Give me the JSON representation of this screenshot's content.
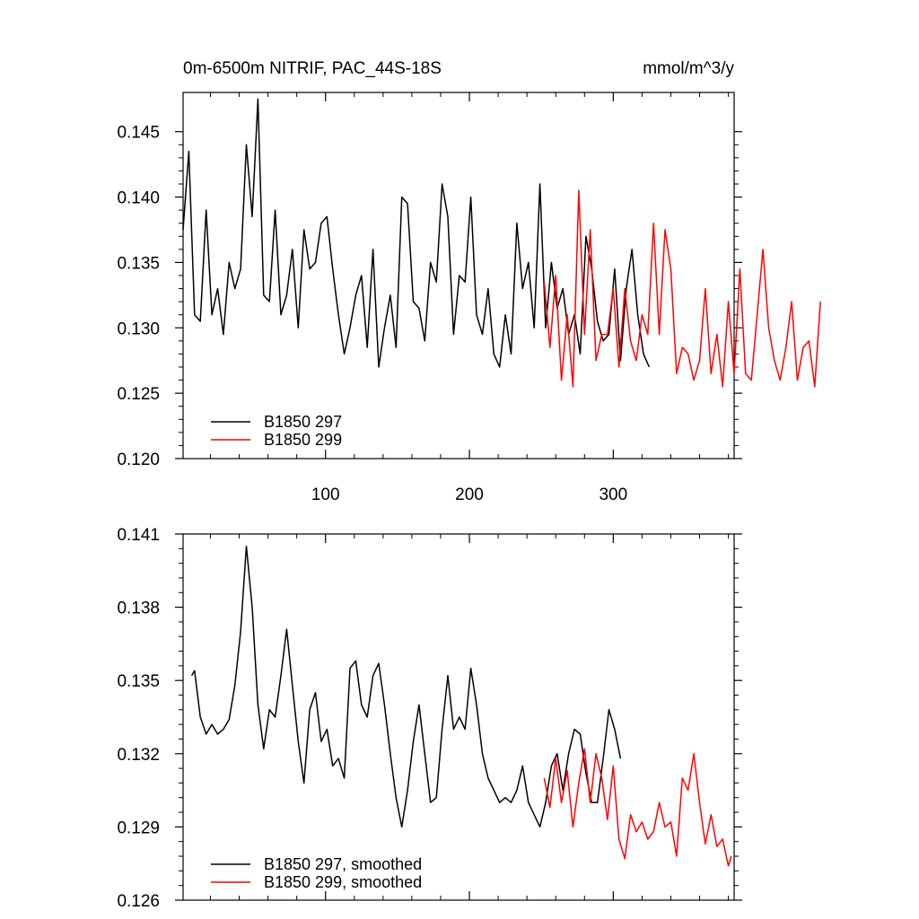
{
  "chart_data": [
    {
      "type": "line",
      "title": "0m-6500m NITRIF, PAC_44S-18S",
      "units": "mmol/m^3/y",
      "xlim": [
        1,
        384
      ],
      "ylim": [
        0.12,
        0.148
      ],
      "x_ticks": [
        100,
        200,
        300
      ],
      "x_tick_labels": [
        "100",
        "200",
        "300"
      ],
      "y_ticks": [
        0.12,
        0.125,
        0.13,
        0.135,
        0.14,
        0.145
      ],
      "y_tick_labels": [
        "0.120",
        "0.125",
        "0.130",
        "0.135",
        "0.140",
        "0.145"
      ],
      "legend_position": "bottom-left",
      "series": [
        {
          "name": "B1850 297",
          "color": "#000000",
          "x_start": 1,
          "x_step": 4,
          "values": [
            0.1375,
            0.1435,
            0.131,
            0.1305,
            0.139,
            0.131,
            0.133,
            0.1295,
            0.135,
            0.133,
            0.1345,
            0.144,
            0.1385,
            0.1475,
            0.1325,
            0.132,
            0.139,
            0.131,
            0.1325,
            0.136,
            0.13,
            0.1375,
            0.1345,
            0.135,
            0.138,
            0.1385,
            0.1345,
            0.131,
            0.128,
            0.13,
            0.1325,
            0.134,
            0.1285,
            0.136,
            0.127,
            0.13,
            0.1325,
            0.1285,
            0.14,
            0.1395,
            0.132,
            0.1315,
            0.129,
            0.135,
            0.1335,
            0.141,
            0.1385,
            0.1295,
            0.134,
            0.1335,
            0.14,
            0.131,
            0.1295,
            0.133,
            0.128,
            0.127,
            0.131,
            0.128,
            0.138,
            0.133,
            0.135,
            0.13,
            0.141,
            0.13,
            0.135,
            0.1315,
            0.133,
            0.1295,
            0.131,
            0.128,
            0.137,
            0.1345,
            0.1305,
            0.129,
            0.1295,
            0.1345,
            0.1275,
            0.133,
            0.136,
            0.131,
            0.128,
            0.127
          ]
        },
        {
          "name": "B1850 299",
          "color": "#ff0000",
          "x_start": 252,
          "x_step": 4,
          "values": [
            0.1335,
            0.1285,
            0.134,
            0.126,
            0.131,
            0.1255,
            0.1405,
            0.1295,
            0.1375,
            0.1275,
            0.1295,
            0.1295,
            0.133,
            0.127,
            0.133,
            0.129,
            0.1275,
            0.131,
            0.1295,
            0.138,
            0.1295,
            0.1375,
            0.1345,
            0.1265,
            0.1285,
            0.128,
            0.126,
            0.1275,
            0.133,
            0.1265,
            0.1295,
            0.1255,
            0.132,
            0.1265,
            0.1345,
            0.1265,
            0.126,
            0.131,
            0.136,
            0.13,
            0.1275,
            0.126,
            0.1285,
            0.132,
            0.126,
            0.1285,
            0.129,
            0.1255,
            0.132
          ]
        }
      ]
    },
    {
      "type": "line",
      "xlim": [
        1,
        384
      ],
      "ylim": [
        0.126,
        0.141
      ],
      "x_ticks": [
        100,
        200,
        300
      ],
      "y_ticks": [
        0.126,
        0.129,
        0.132,
        0.135,
        0.138,
        0.141
      ],
      "y_tick_labels": [
        "0.126",
        "0.129",
        "0.132",
        "0.135",
        "0.138",
        "0.141"
      ],
      "legend_position": "bottom-left",
      "series": [
        {
          "name": "B1850 297, smoothed",
          "color": "#000000",
          "x": [
            7,
            9,
            13,
            17,
            21,
            25,
            29,
            33,
            37,
            41,
            45,
            49,
            53,
            57,
            61,
            65,
            69,
            73,
            77,
            81,
            85,
            89,
            93,
            97,
            101,
            105,
            109,
            113,
            117,
            121,
            125,
            129,
            133,
            137,
            141,
            145,
            149,
            153,
            157,
            161,
            165,
            169,
            173,
            177,
            181,
            185,
            189,
            193,
            197,
            201,
            205,
            209,
            213,
            217,
            221,
            225,
            229,
            233,
            237,
            241,
            245,
            249,
            253,
            257,
            261,
            265,
            269,
            273,
            277,
            281,
            285,
            289,
            293,
            297,
            301,
            305
          ],
          "values": [
            0.1352,
            0.1354,
            0.1335,
            0.1328,
            0.1332,
            0.1328,
            0.133,
            0.1334,
            0.1348,
            0.137,
            0.1405,
            0.138,
            0.134,
            0.1322,
            0.1338,
            0.1335,
            0.1352,
            0.1371,
            0.1348,
            0.1325,
            0.1308,
            0.1338,
            0.1345,
            0.1325,
            0.133,
            0.1315,
            0.1318,
            0.131,
            0.1355,
            0.1358,
            0.134,
            0.1335,
            0.1352,
            0.1357,
            0.134,
            0.132,
            0.1302,
            0.129,
            0.1305,
            0.1325,
            0.134,
            0.132,
            0.13,
            0.1302,
            0.133,
            0.1352,
            0.133,
            0.1335,
            0.133,
            0.1355,
            0.134,
            0.132,
            0.131,
            0.1305,
            0.13,
            0.1302,
            0.13,
            0.1305,
            0.1315,
            0.13,
            0.1295,
            0.129,
            0.13,
            0.1315,
            0.132,
            0.1305,
            0.132,
            0.133,
            0.1328,
            0.1312,
            0.13,
            0.13,
            0.1318,
            0.1338,
            0.133,
            0.1318
          ]
        },
        {
          "name": "B1850 299, smoothed",
          "color": "#ff0000",
          "x": [
            252,
            256,
            260,
            264,
            268,
            272,
            276,
            280,
            284,
            288,
            292,
            296,
            300,
            304,
            308,
            312,
            316,
            320,
            324,
            328,
            332,
            336,
            340,
            344,
            348,
            352,
            356,
            360,
            364,
            368,
            372,
            376,
            380,
            382
          ],
          "values": [
            0.131,
            0.1298,
            0.1318,
            0.13,
            0.1313,
            0.129,
            0.1308,
            0.1322,
            0.13,
            0.132,
            0.131,
            0.1293,
            0.1315,
            0.1285,
            0.1277,
            0.1295,
            0.1288,
            0.1292,
            0.1285,
            0.1288,
            0.13,
            0.129,
            0.1292,
            0.1278,
            0.131,
            0.1305,
            0.132,
            0.13,
            0.1283,
            0.1295,
            0.1282,
            0.1285,
            0.1274,
            0.1278
          ]
        }
      ]
    }
  ]
}
